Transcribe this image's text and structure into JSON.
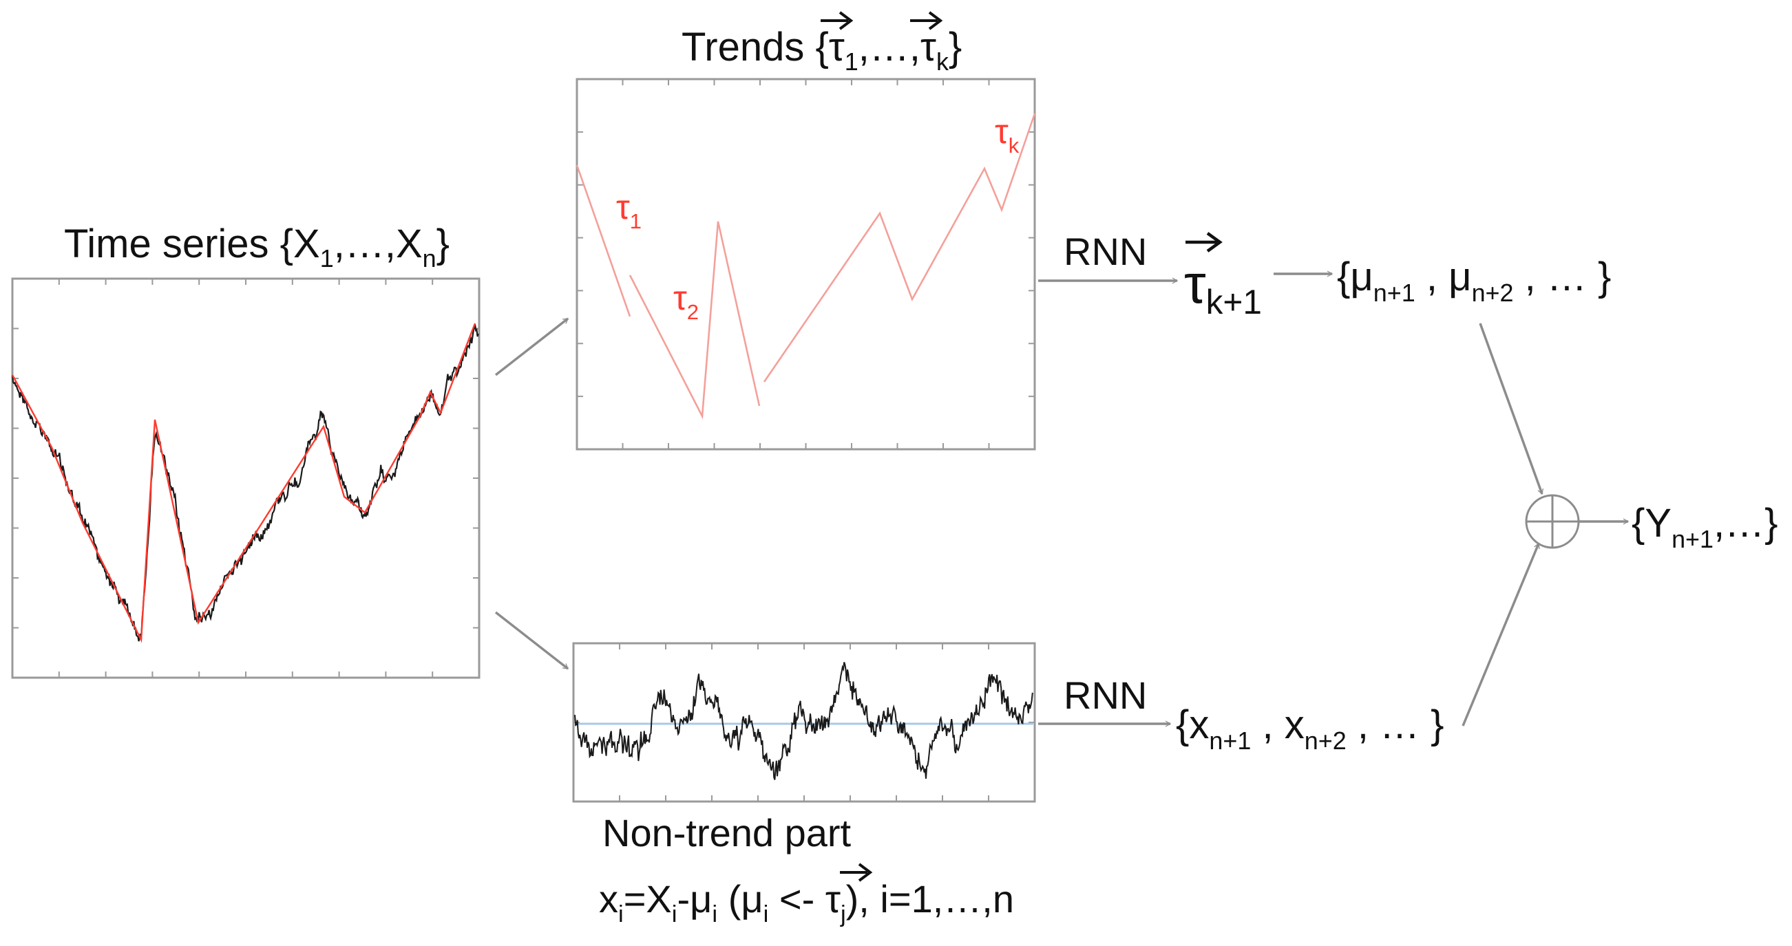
{
  "time_series": {
    "title_prefix": "Time series {X",
    "sub1": "1",
    "mid": ",…,X",
    "subn": "n",
    "suffix": "}"
  },
  "trends": {
    "title_prefix": "Trends {",
    "tau": "τ",
    "sub1": "1",
    "mid": ",…,",
    "subk": "k",
    "suffix": "}",
    "label_tau1": "τ",
    "label_tau1_sub": "1",
    "label_tau2": "τ",
    "label_tau2_sub": "2",
    "label_tauk": "τ",
    "label_tauk_sub": "k"
  },
  "rnn_top": {
    "label": "RNN",
    "output_tau": "τ",
    "output_sub": "k+1"
  },
  "mu_set": {
    "open": "{μ",
    "sub1": "n+1",
    "mid": " , μ",
    "sub2": "n+2",
    "close": " , … }"
  },
  "rnn_bottom": {
    "label": "RNN"
  },
  "x_set": {
    "open": "{x",
    "sub1": "n+1",
    "mid": " , x",
    "sub2": "n+2",
    "close": " , … }"
  },
  "output_set": {
    "open": "{Y",
    "sub": "n+1",
    "close": ",…}"
  },
  "non_trend": {
    "title": "Non-trend part",
    "formula_a": "x",
    "formula_i1": "i",
    "formula_b": "=X",
    "formula_i2": "i",
    "formula_c": "-μ",
    "formula_i3": "i",
    "formula_d": " (μ",
    "formula_i4": "i",
    "formula_e": " <- ",
    "formula_tau": "τ",
    "formula_j": "j",
    "formula_f": "), i=1,…,n"
  },
  "colors": {
    "trend": "#ff3b30",
    "trend_light": "#f4a09a",
    "series": "#1a1a1a",
    "zero_line": "#a9c8e8",
    "arrow": "#8c8c8c"
  },
  "icons": {
    "sum": "circle-plus-icon"
  }
}
